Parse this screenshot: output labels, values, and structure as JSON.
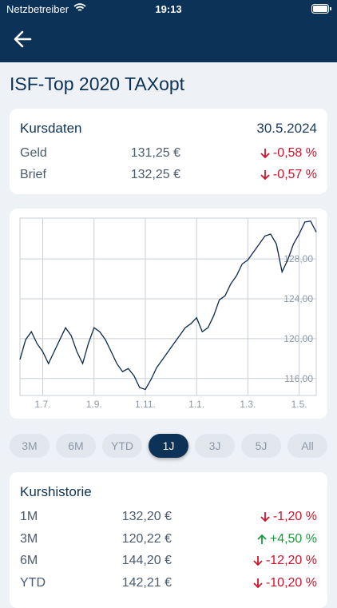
{
  "status_bar": {
    "carrier": "Netzbetreiber",
    "time": "19:13"
  },
  "title": "ISF-Top 2020 TAXopt",
  "quote": {
    "title": "Kursdaten",
    "date": "30.5.2024",
    "rows": [
      {
        "label": "Geld",
        "price": "131,25 €",
        "change": "-0,58 %"
      },
      {
        "label": "Brief",
        "price": "132,25 €",
        "change": "-0,57 %"
      }
    ]
  },
  "chart_data": {
    "type": "line",
    "color": "#0b2a4a",
    "grid": true,
    "categories": [
      null,
      null,
      null,
      null,
      "1.7.",
      null,
      null,
      null,
      null,
      null,
      null,
      null,
      null,
      "1.9.",
      null,
      null,
      null,
      null,
      null,
      null,
      null,
      null,
      "1.11.",
      null,
      null,
      null,
      null,
      null,
      null,
      null,
      null,
      "1.1.",
      null,
      null,
      null,
      null,
      null,
      null,
      null,
      null,
      "1.3.",
      null,
      null,
      null,
      null,
      null,
      null,
      null,
      null,
      "1.5.",
      null,
      null,
      null
    ],
    "values": [
      117.9,
      119.9,
      120.7,
      119.5,
      118.7,
      117.5,
      118.7,
      119.9,
      121.1,
      120.3,
      118.7,
      117.5,
      119.5,
      121.1,
      120.7,
      119.9,
      118.7,
      117.5,
      116.7,
      117.0,
      116.3,
      115.1,
      114.9,
      115.9,
      117.1,
      117.9,
      118.7,
      119.5,
      120.3,
      121.1,
      121.5,
      122.1,
      120.7,
      121.1,
      122.3,
      123.9,
      124.3,
      125.5,
      126.3,
      127.5,
      127.9,
      128.7,
      129.5,
      130.3,
      130.5,
      129.5,
      126.7,
      127.9,
      129.5,
      130.5,
      131.7,
      131.8,
      130.7
    ],
    "ylim": [
      114.3,
      132.1
    ],
    "yticks": [
      {
        "value": 116,
        "label": "116,00"
      },
      {
        "value": 120,
        "label": "120,00"
      },
      {
        "value": 124,
        "label": "124,00"
      },
      {
        "value": 128,
        "label": "128,00"
      }
    ]
  },
  "ranges": {
    "labels": [
      "3M",
      "6M",
      "YTD",
      "1J",
      "3J",
      "5J",
      "All"
    ],
    "selected": "1J"
  },
  "history": {
    "title": "Kurshistorie",
    "rows": [
      {
        "label": "1M",
        "price": "132,20 €",
        "change": "-1,20 %"
      },
      {
        "label": "3M",
        "price": "120,22 €",
        "change": "+4,50 %"
      },
      {
        "label": "6M",
        "price": "144,20 €",
        "change": "-12,20 %"
      },
      {
        "label": "YTD",
        "price": "142,21 €",
        "change": "-10,20 %"
      }
    ]
  }
}
